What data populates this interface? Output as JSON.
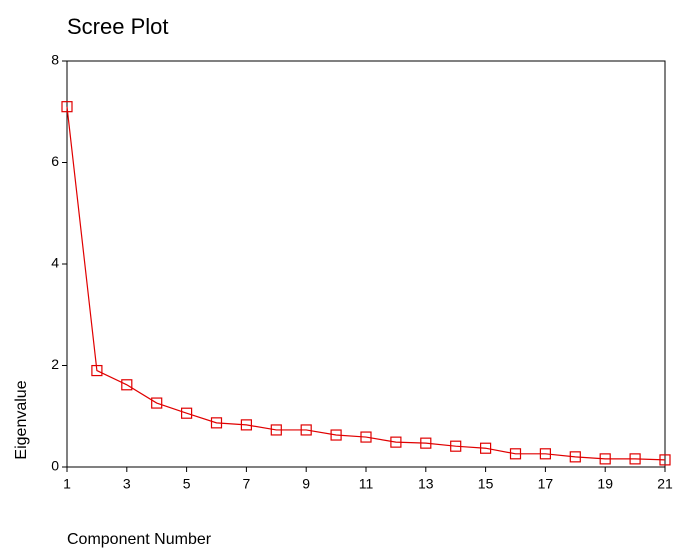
{
  "chart_data": {
    "type": "line",
    "title": "Scree Plot",
    "x_label": "Component Number",
    "y_label": "Eigenvalue",
    "x": [
      1,
      2,
      3,
      4,
      5,
      6,
      7,
      8,
      9,
      10,
      11,
      12,
      13,
      14,
      15,
      16,
      17,
      18,
      19,
      20,
      21
    ],
    "series": [
      {
        "color": "#e00000",
        "values": [
          7.1,
          1.9,
          1.62,
          1.26,
          1.06,
          0.87,
          0.83,
          0.73,
          0.73,
          0.63,
          0.59,
          0.49,
          0.47,
          0.41,
          0.37,
          0.26,
          0.26,
          0.2,
          0.16,
          0.16,
          0.14
        ]
      }
    ],
    "xlim": [
      1,
      21
    ],
    "xticks": [
      1,
      3,
      5,
      7,
      9,
      11,
      13,
      15,
      17,
      19,
      21
    ],
    "ylim": [
      0,
      8
    ],
    "yticks": [
      0,
      2,
      4,
      6,
      8
    ]
  }
}
